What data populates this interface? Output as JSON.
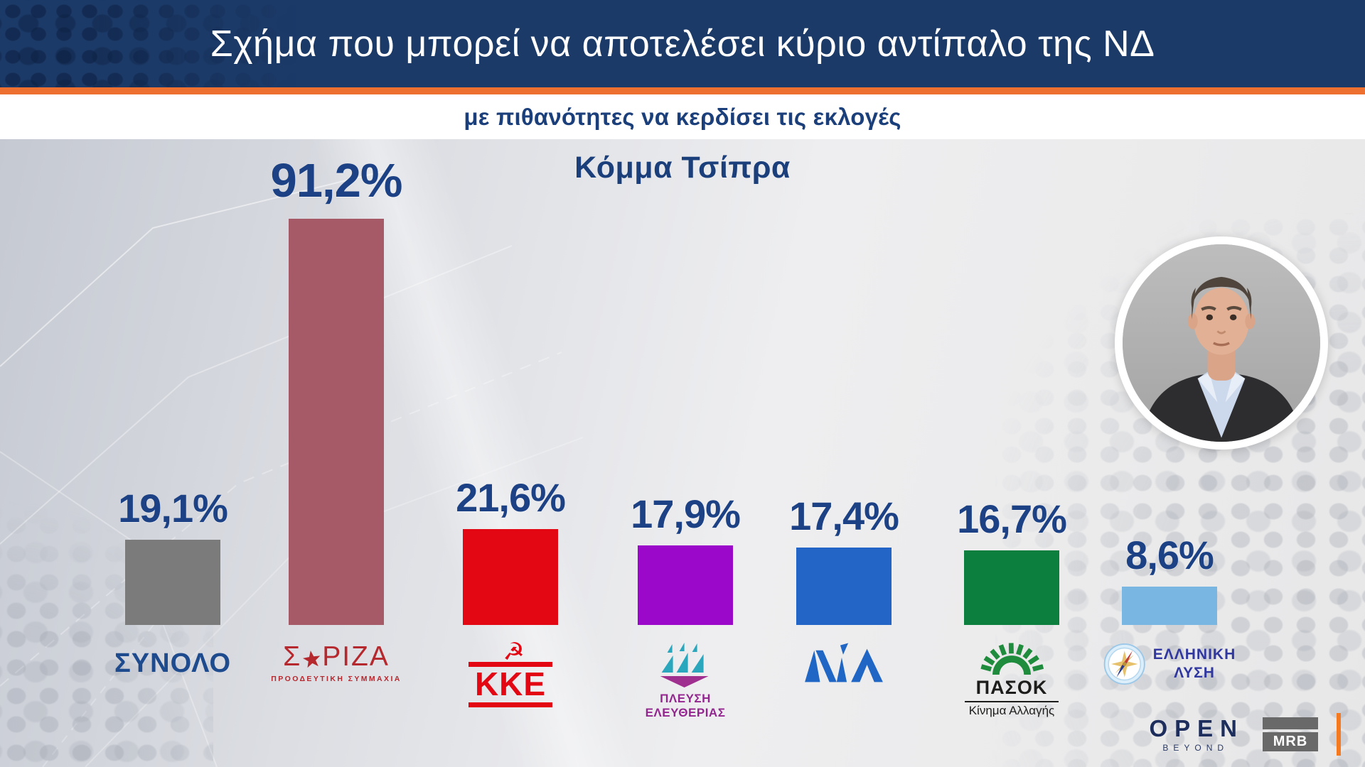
{
  "banner": {
    "title": "Σχήμα που μπορεί να αποτελέσει κύριο αντίπαλο της ΝΔ",
    "bg_color": "#1c3a68",
    "accent_line_color": "#ee7030"
  },
  "subtitle": "με πιθανότητες να κερδίσει τις εκλογές",
  "chart_title": "Κόμμα Τσίπρα",
  "chart_data": {
    "type": "bar",
    "title": "Κόμμα Τσίπρα",
    "categories": [
      "ΣΥΝΟΛΟ",
      "ΣΥΡΙΖΑ ΠΡΟΟΔΕΥΤΙΚΗ ΣΥΜΜΑΧΙΑ",
      "ΚΚΕ",
      "ΠΛΕΥΣΗ ΕΛΕΥΘΕΡΙΑΣ",
      "ΝΔ",
      "ΠΑΣΟΚ Κίνημα Αλλαγής",
      "ΕΛΛΗΝΙΚΗ ΛΥΣΗ"
    ],
    "values": [
      19.1,
      91.2,
      21.6,
      17.9,
      17.4,
      16.7,
      8.6
    ],
    "value_labels": [
      "19,1%",
      "91,2%",
      "21,6%",
      "17,9%",
      "17,4%",
      "16,7%",
      "8,6%"
    ],
    "bar_colors": [
      "#7b7b7b",
      "#a65a68",
      "#e30613",
      "#9b08ca",
      "#2265c6",
      "#0c7f3f",
      "#79b7e2"
    ],
    "value_label_color": "#1c4184",
    "ylim": [
      0,
      100
    ],
    "grid": false,
    "legend": false
  },
  "parties": [
    {
      "name": "ΣΥΝΟΛΟ",
      "value": 19.1,
      "value_label": "19,1%",
      "color": "#7b7b7b",
      "label": "ΣΥΝΟΛΟ"
    },
    {
      "name": "ΣΥΡΙΖΑ",
      "value": 91.2,
      "value_label": "91,2%",
      "color": "#a65a68",
      "logo_prefix": "Σ",
      "logo_suffix": "ΡΙΖΑ",
      "logo_sub": "ΠΡΟΟΔΕΥΤΙΚΗ ΣΥΜΜΑΧΙΑ"
    },
    {
      "name": "ΚΚΕ",
      "value": 21.6,
      "value_label": "21,6%",
      "color": "#e30613",
      "label": "ΚΚΕ"
    },
    {
      "name": "ΠΛΕΥΣΗ ΕΛΕΥΘΕΡΙΑΣ",
      "value": 17.9,
      "value_label": "17,9%",
      "color": "#9b08ca",
      "label_line1": "ΠΛΕΥΣΗ",
      "label_line2": "ΕΛΕΥΘΕΡΙΑΣ"
    },
    {
      "name": "ΝΔ",
      "value": 17.4,
      "value_label": "17,4%",
      "color": "#2265c6"
    },
    {
      "name": "ΠΑΣΟΚ",
      "value": 16.7,
      "value_label": "16,7%",
      "color": "#0c7f3f",
      "label": "ΠΑΣΟΚ",
      "label_sub": "Κίνημα Αλλαγής"
    },
    {
      "name": "ΕΛΛΗΝΙΚΗ ΛΥΣΗ",
      "value": 8.6,
      "value_label": "8,6%",
      "color": "#79b7e2",
      "label_line1": "ΕΛΛΗΝΙΚΗ",
      "label_line2": "ΛΥΣΗ"
    }
  ],
  "footer": {
    "open_main": "OPEN",
    "open_sub": "BEYOND",
    "mrb": "MRB"
  }
}
